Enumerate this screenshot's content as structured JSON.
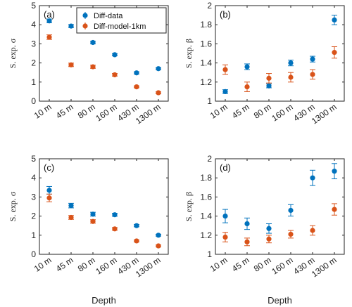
{
  "colors": {
    "data": "#0072BD",
    "model": "#D95319"
  },
  "legend": {
    "entries": [
      "Diff-data",
      "Diff-model-1km"
    ],
    "placement": "top-right of panel (a)"
  },
  "chart_data": [
    {
      "type": "scatter",
      "panel": "(a)",
      "categories": [
        "10 m",
        "45 m",
        "80 m",
        "160 m",
        "430 m",
        "1300 m"
      ],
      "ylabel": "S. exp. σ",
      "xlabel": "",
      "ylim": [
        0,
        5
      ],
      "yticks": [
        "0",
        "1",
        "2",
        "3",
        "4",
        "5"
      ],
      "series": [
        {
          "name": "Diff-data",
          "values": [
            4.2,
            3.93,
            3.07,
            2.43,
            1.48,
            1.7
          ],
          "err": [
            0.1,
            0.08,
            0.07,
            0.06,
            0.06,
            0.05
          ]
        },
        {
          "name": "Diff-model-1km",
          "values": [
            3.35,
            1.9,
            1.8,
            1.38,
            0.75,
            0.44
          ],
          "err": [
            0.12,
            0.09,
            0.08,
            0.07,
            0.05,
            0.05
          ]
        }
      ]
    },
    {
      "type": "scatter",
      "panel": "(b)",
      "categories": [
        "10 m",
        "45 m",
        "80 m",
        "160 m",
        "430 m",
        "1300 m"
      ],
      "ylabel": "S. exp. β",
      "xlabel": "",
      "ylim": [
        1,
        2
      ],
      "yticks": [
        "1",
        "1.2",
        "1.4",
        "1.6",
        "1.8",
        "2"
      ],
      "series": [
        {
          "name": "Diff-data",
          "values": [
            1.1,
            1.36,
            1.16,
            1.4,
            1.44,
            1.85
          ],
          "err": [
            0.02,
            0.03,
            0.02,
            0.03,
            0.03,
            0.05
          ]
        },
        {
          "name": "Diff-model-1km",
          "values": [
            1.33,
            1.15,
            1.24,
            1.25,
            1.28,
            1.51
          ],
          "err": [
            0.05,
            0.05,
            0.05,
            0.05,
            0.05,
            0.06
          ]
        }
      ]
    },
    {
      "type": "scatter",
      "panel": "(c)",
      "categories": [
        "10 m",
        "45 m",
        "80 m",
        "160 m",
        "430 m",
        "1300 m"
      ],
      "ylabel": "S. exp. σ",
      "xlabel": "Depth",
      "ylim": [
        0,
        5
      ],
      "yticks": [
        "0",
        "1",
        "2",
        "3",
        "4",
        "5"
      ],
      "series": [
        {
          "name": "Diff-data",
          "values": [
            3.35,
            2.55,
            2.1,
            2.07,
            1.5,
            1.0
          ],
          "err": [
            0.2,
            0.12,
            0.1,
            0.08,
            0.06,
            0.05
          ]
        },
        {
          "name": "Diff-model-1km",
          "values": [
            2.95,
            1.93,
            1.72,
            1.33,
            0.7,
            0.44
          ],
          "err": [
            0.2,
            0.1,
            0.09,
            0.07,
            0.05,
            0.05
          ]
        }
      ]
    },
    {
      "type": "scatter",
      "panel": "(d)",
      "categories": [
        "10 m",
        "45 m",
        "80 m",
        "160 m",
        "430 m",
        "1300 m"
      ],
      "ylabel": "S. exp. β",
      "xlabel": "Depth",
      "ylim": [
        1,
        2
      ],
      "yticks": [
        "1",
        "1.2",
        "1.4",
        "1.6",
        "1.8",
        "2"
      ],
      "series": [
        {
          "name": "Diff-data",
          "values": [
            1.4,
            1.32,
            1.27,
            1.46,
            1.8,
            1.87
          ],
          "err": [
            0.07,
            0.06,
            0.05,
            0.06,
            0.08,
            0.08
          ]
        },
        {
          "name": "Diff-model-1km",
          "values": [
            1.18,
            1.13,
            1.16,
            1.21,
            1.25,
            1.47
          ],
          "err": [
            0.05,
            0.04,
            0.04,
            0.04,
            0.05,
            0.06
          ]
        }
      ]
    }
  ]
}
